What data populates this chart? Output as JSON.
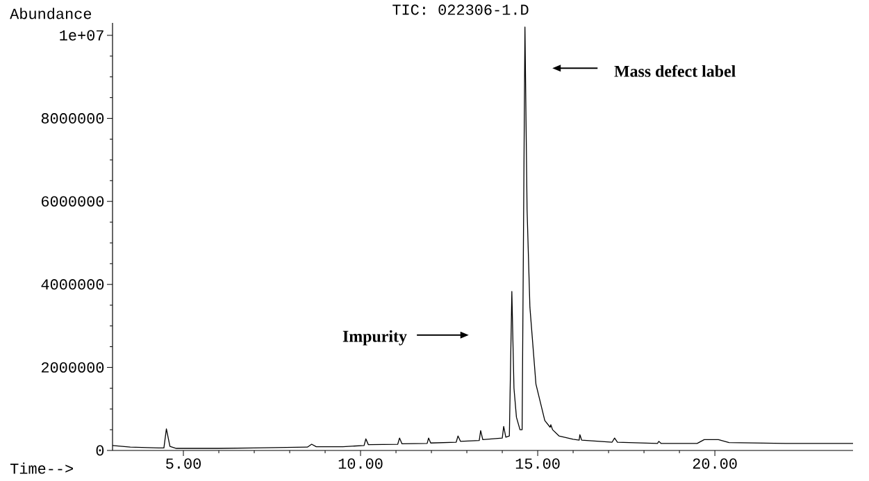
{
  "chart_data": {
    "type": "line",
    "title": "TIC: 022306-1.D",
    "xlabel": "Time-->",
    "ylabel": "Abundance",
    "xlim": [
      3,
      23.9
    ],
    "ylim": [
      0,
      10300000
    ],
    "xticks": [
      {
        "value": 5,
        "label": "5.00"
      },
      {
        "value": 10,
        "label": "10.00"
      },
      {
        "value": 15,
        "label": "15.00"
      },
      {
        "value": 20,
        "label": "20.00"
      }
    ],
    "yticks": [
      0,
      2000000,
      4000000,
      6000000,
      8000000,
      {
        "value": 10000000,
        "label": "1e+07"
      }
    ],
    "grid": false,
    "marker": "none",
    "line_style": "solid",
    "series": [
      {
        "color": "#000000",
        "x": [
          3.0,
          3.5,
          4.3,
          4.45,
          4.52,
          4.62,
          4.8,
          6,
          7,
          8.5,
          8.62,
          8.75,
          9.5,
          10.1,
          10.15,
          10.22,
          11.05,
          11.1,
          11.17,
          11.88,
          11.92,
          11.98,
          12.7,
          12.75,
          12.82,
          13.35,
          13.39,
          13.45,
          14.0,
          14.04,
          14.1,
          14.2,
          14.27,
          14.33,
          14.4,
          14.5,
          14.56,
          14.64,
          14.7,
          14.78,
          14.95,
          15.2,
          15.35,
          15.37,
          15.42,
          15.6,
          16.0,
          16.17,
          16.19,
          16.24,
          17.1,
          17.17,
          17.25,
          18.38,
          18.42,
          18.48,
          19.5,
          19.7,
          20.1,
          20.4,
          22,
          23.9
        ],
        "values": [
          120000,
          80000,
          60000,
          60000,
          520000,
          100000,
          50000,
          50000,
          60000,
          80000,
          150000,
          90000,
          90000,
          120000,
          280000,
          140000,
          150000,
          300000,
          160000,
          170000,
          300000,
          180000,
          200000,
          350000,
          220000,
          240000,
          480000,
          260000,
          300000,
          580000,
          320000,
          350000,
          3830000,
          1500000,
          800000,
          500000,
          500000,
          10200000,
          5800000,
          3450000,
          1600000,
          720000,
          560000,
          620000,
          500000,
          350000,
          270000,
          250000,
          380000,
          250000,
          200000,
          300000,
          200000,
          170000,
          220000,
          170000,
          170000,
          260000,
          260000,
          190000,
          170000,
          170000
        ]
      }
    ],
    "annotations": [
      "Impurity",
      "Mass defect label"
    ]
  }
}
